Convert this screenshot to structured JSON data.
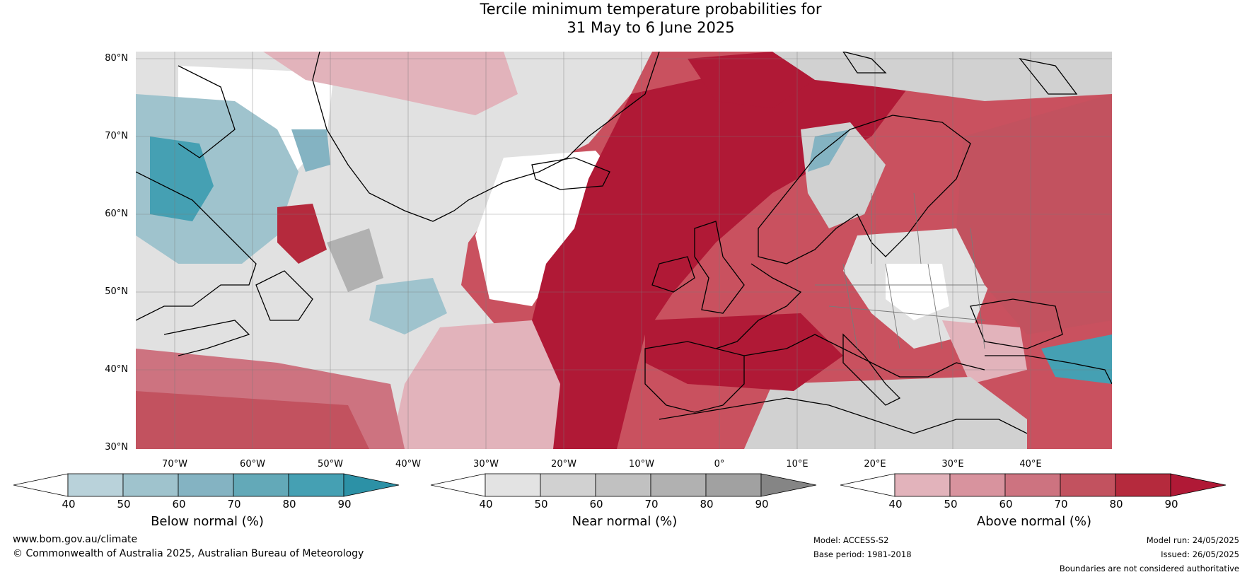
{
  "title": {
    "line1": "Tercile minimum temperature probabilities for",
    "line2": "31 May to 6 June 2025"
  },
  "map": {
    "lat_labels": [
      "80°N",
      "70°N",
      "60°N",
      "50°N",
      "40°N",
      "30°N"
    ],
    "lon_labels": [
      "70°W",
      "60°W",
      "50°W",
      "40°W",
      "30°W",
      "20°W",
      "10°W",
      "0°",
      "10°E",
      "20°E",
      "30°E",
      "40°E"
    ],
    "extent": {
      "lon": [
        -75,
        50
      ],
      "lat": [
        30,
        81
      ]
    }
  },
  "legends": [
    {
      "title": "Below normal (%)",
      "ticks": [
        "40",
        "50",
        "60",
        "70",
        "80",
        "90"
      ],
      "colors": [
        "#ffffff",
        "#b9d2da",
        "#9fc3cd",
        "#84b3c2",
        "#63a9b8",
        "#45a0b3",
        "#2c91a6"
      ]
    },
    {
      "title": "Near normal (%)",
      "ticks": [
        "40",
        "50",
        "60",
        "70",
        "80",
        "90"
      ],
      "colors": [
        "#ffffff",
        "#e3e3e3",
        "#d1d1d1",
        "#c1c1c1",
        "#b1b1b1",
        "#a1a1a1",
        "#858585"
      ]
    },
    {
      "title": "Above normal (%)",
      "ticks": [
        "40",
        "50",
        "60",
        "70",
        "80",
        "90"
      ],
      "colors": [
        "#ffffff",
        "#e2b3bb",
        "#d8939e",
        "#cd7380",
        "#c2525f",
        "#b52a3d",
        "#b01936"
      ]
    }
  ],
  "footer": {
    "website": "www.bom.gov.au/climate",
    "copyright": "© Commonwealth of Australia 2025, Australian Bureau of Meteorology",
    "model": "Model: ACCESS-S2",
    "base_period": "Base period: 1981-2018",
    "model_run": "Model run: 24/05/2025",
    "issued": "Issued: 26/05/2025",
    "disclaimer": "Boundaries are not considered authoritative"
  }
}
